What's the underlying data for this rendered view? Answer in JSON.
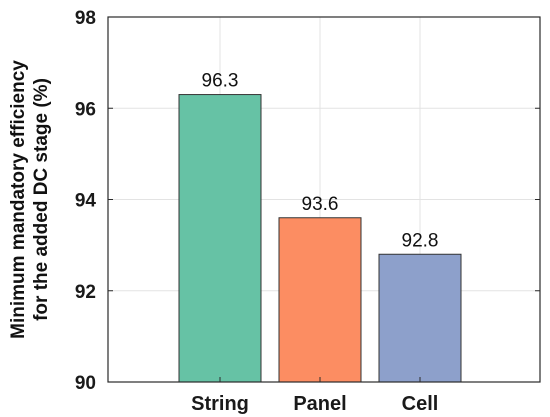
{
  "chart_data": {
    "type": "bar",
    "categories": [
      "String",
      "Panel",
      "Cell"
    ],
    "values": [
      96.3,
      93.6,
      92.8
    ],
    "data_labels": [
      "96.3",
      "93.6",
      "92.8"
    ],
    "colors": [
      "#66c2a5",
      "#fc8d62",
      "#8da0cb"
    ],
    "title": "",
    "xlabel": "",
    "ylabel_lines": [
      "Minimum mandatory efficiency",
      "for the added DC stage (%)"
    ],
    "ylim": [
      90,
      98
    ],
    "yticks": [
      90,
      92,
      94,
      96,
      98
    ],
    "grid": true
  }
}
